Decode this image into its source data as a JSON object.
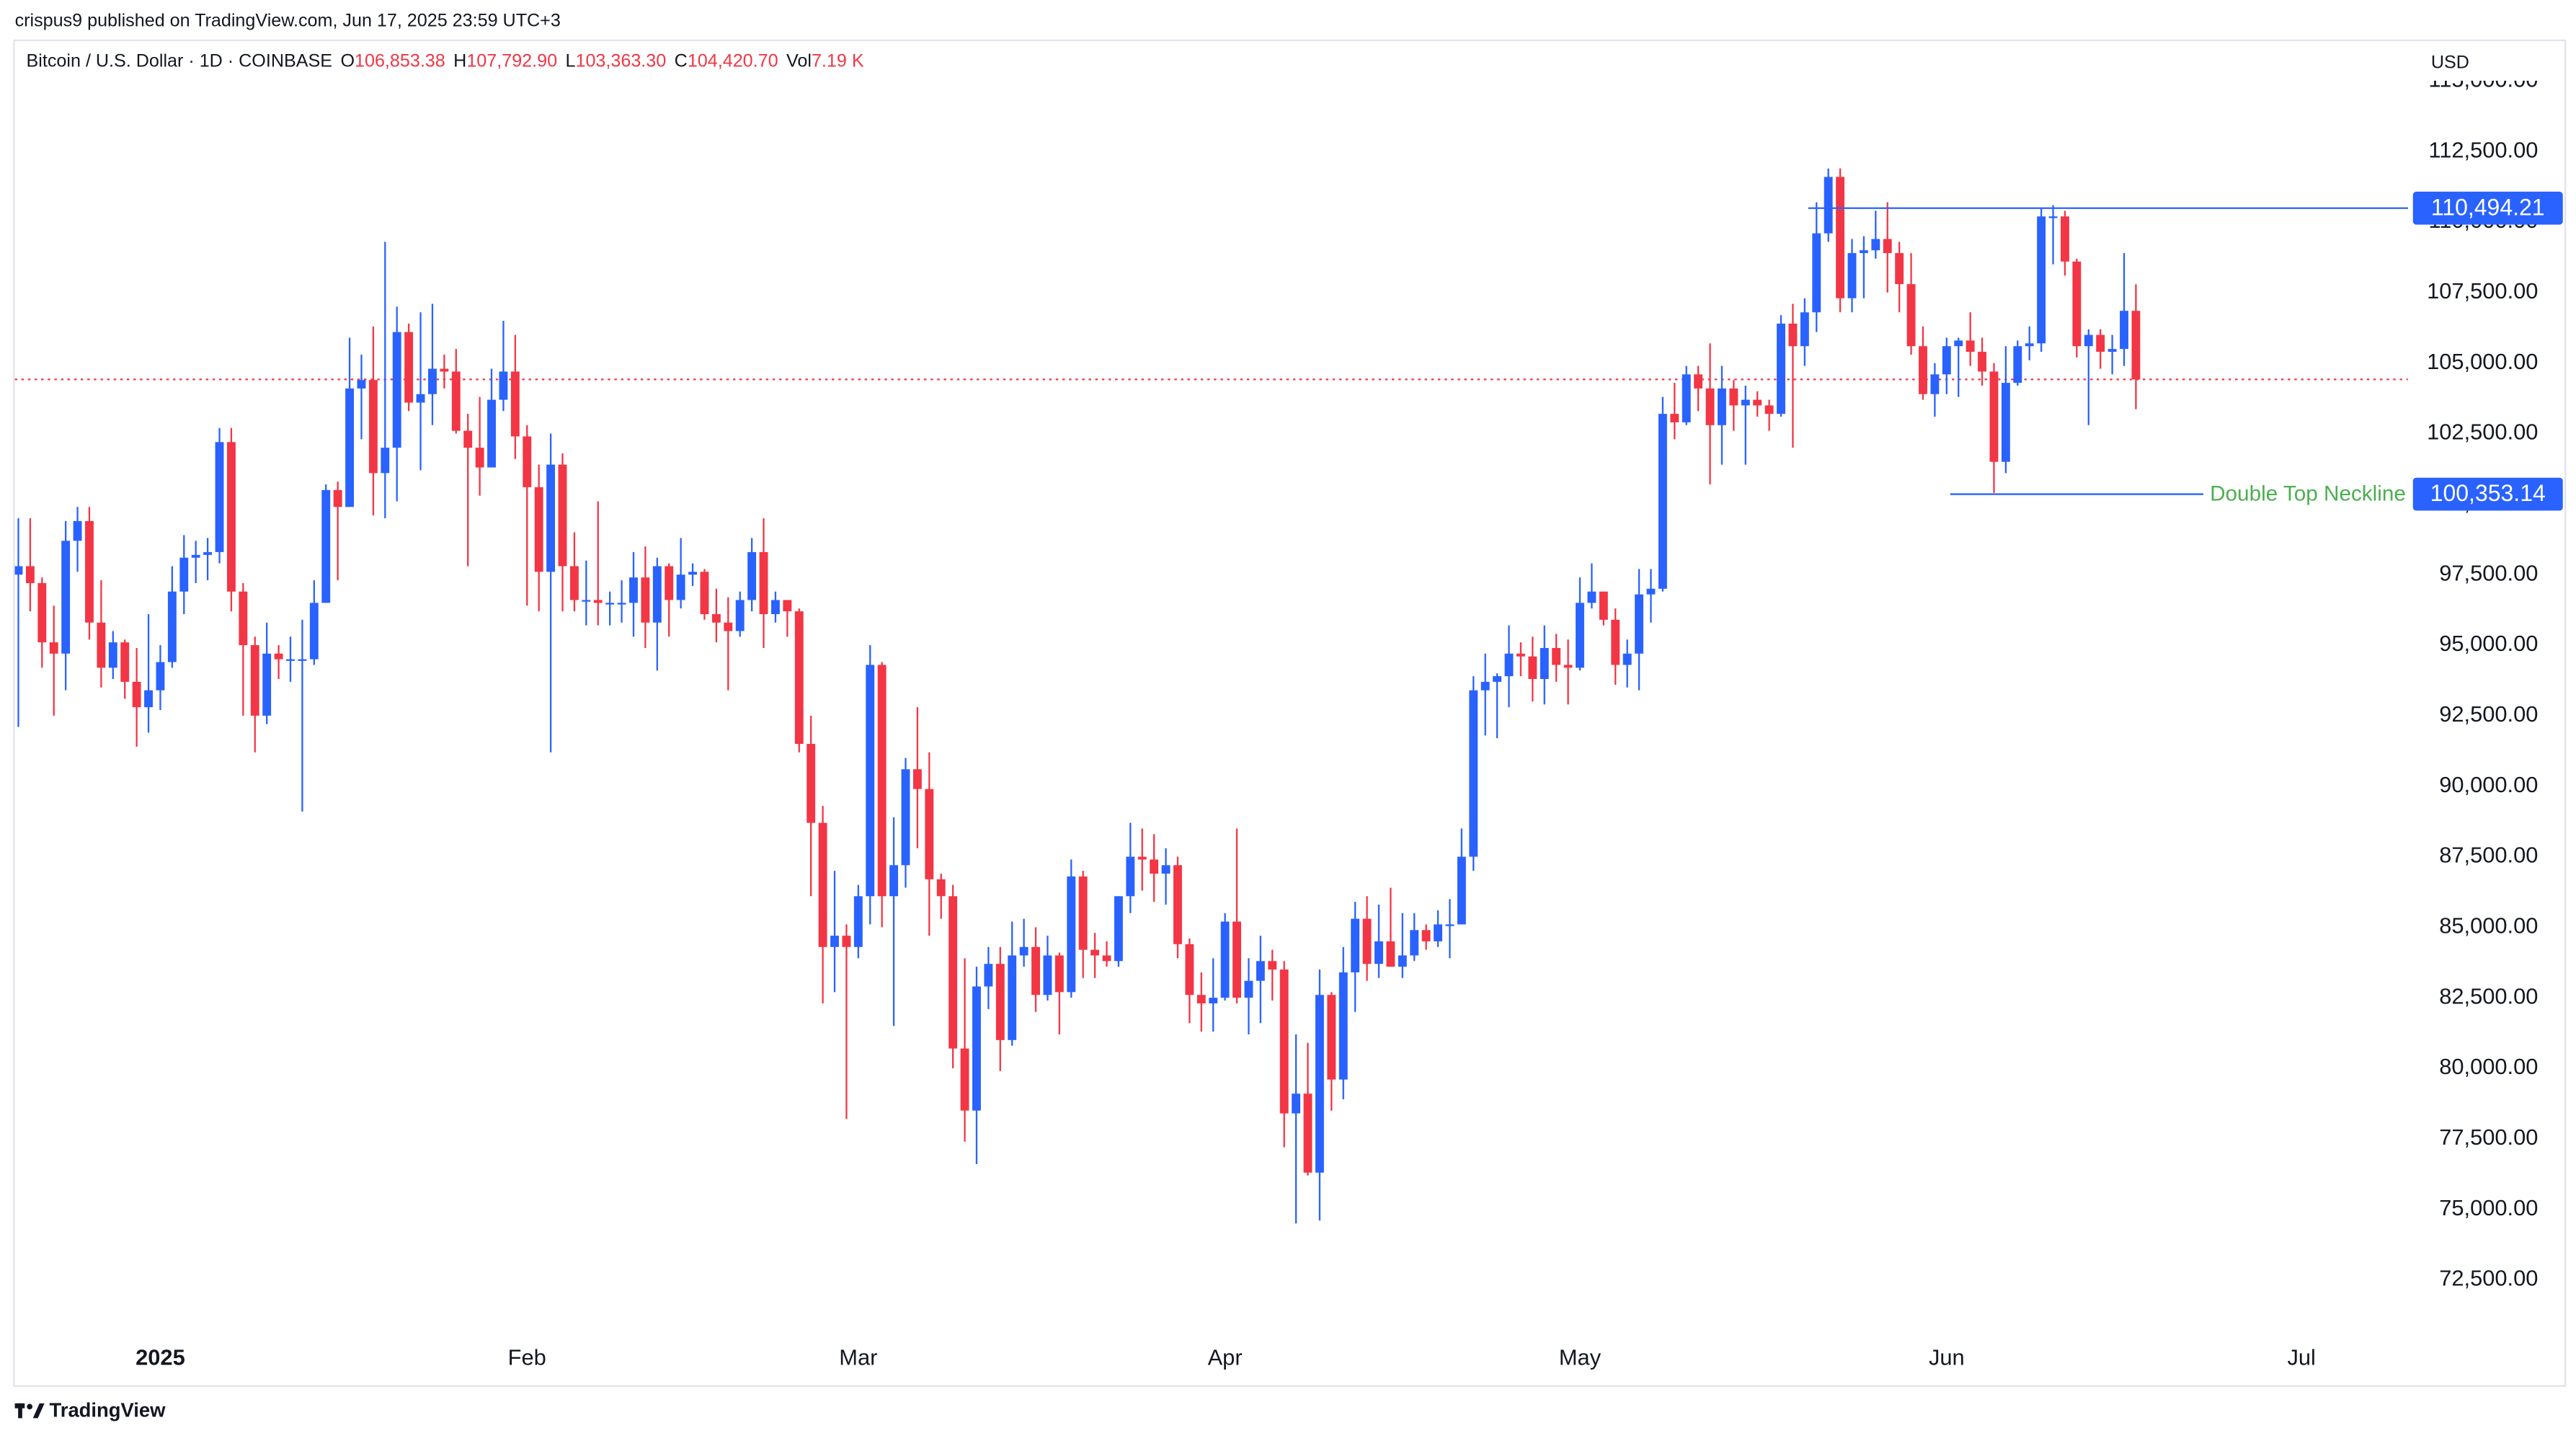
{
  "chart_data": {
    "type": "candlestick",
    "header": "crispus9 published on TradingView.com, Jun 17, 2025 23:59 UTC+3",
    "symbol": "Bitcoin / U.S. Dollar · 1D · COINBASE",
    "legend_items": [
      {
        "label": "O",
        "value": "106,853.38"
      },
      {
        "label": "H",
        "value": "107,792.90"
      },
      {
        "label": "L",
        "value": "103,363.30"
      },
      {
        "label": "C",
        "value": "104,420.70"
      },
      {
        "label": "Vol",
        "value": "7.19 K"
      }
    ],
    "currency": "USD",
    "footer": "TradingView",
    "up_color": "#2962ff",
    "down_color": "#f23645",
    "open": [
      97500,
      97800,
      97200,
      95100,
      94700,
      98700,
      99400,
      95800,
      94200,
      95100,
      93700,
      92800,
      93400,
      94400,
      96900,
      98100,
      98200,
      98300,
      102200,
      96900,
      95000,
      92500,
      94700,
      94500,
      94500,
      94500,
      96500,
      100500,
      99900,
      104100,
      104400,
      101100,
      102000,
      106100,
      103600,
      103900,
      104800,
      104700,
      102600,
      102000,
      101300,
      103700,
      104700,
      102400,
      100600,
      97600,
      101400,
      97800,
      96600,
      96600,
      96500,
      96500,
      96500,
      97400,
      95800,
      97800,
      96600,
      97500,
      97600,
      96100,
      95800,
      95500,
      96600,
      98300,
      96100,
      96600,
      96200,
      91500,
      88700,
      84300,
      84700,
      84300,
      86100,
      94300,
      86100,
      87200,
      90600,
      89900,
      86700,
      86100,
      80700,
      78500,
      82900,
      83700,
      81000,
      84000,
      84300,
      82600,
      84000,
      82700,
      86800,
      84200,
      84000,
      83800,
      86100,
      87500,
      87400,
      86900,
      87200,
      84400,
      82600,
      82300,
      82500,
      85200,
      82500,
      83100,
      83800,
      83500,
      78400,
      79100,
      76300,
      82600,
      79600,
      83400,
      85300,
      83700,
      84500,
      83600,
      84000,
      84900,
      84500,
      85100,
      85100,
      87500,
      93400,
      93700,
      93900,
      94700,
      94600,
      93800,
      94900,
      94300,
      94200,
      96500,
      96900,
      95900,
      94300,
      94700,
      96800,
      97000,
      103200,
      102900,
      104600,
      104100,
      102800,
      104100,
      103500,
      103700,
      103500,
      103200,
      106400,
      105600,
      106800,
      109600,
      111600,
      107300,
      108900,
      109000,
      109400,
      108900,
      107800,
      105600,
      103900,
      104600,
      105600,
      105800,
      105400,
      104700,
      101500,
      104300,
      105600,
      105700,
      110200,
      110200,
      108600,
      105600,
      106000,
      105400,
      105500,
      106853.38
    ],
    "high": [
      99500,
      99500,
      97400,
      96400,
      99400,
      99900,
      99900,
      97300,
      95500,
      95200,
      94900,
      96100,
      95000,
      97800,
      98900,
      98700,
      98800,
      102700,
      102700,
      97200,
      95300,
      95800,
      95000,
      95300,
      95900,
      97300,
      100700,
      100800,
      105900,
      105300,
      106300,
      109300,
      107000,
      106400,
      106800,
      107100,
      105300,
      105500,
      103200,
      103800,
      104800,
      106500,
      106000,
      102800,
      101400,
      102500,
      101800,
      99000,
      98000,
      100100,
      96900,
      97300,
      98300,
      98500,
      98100,
      97900,
      98800,
      97900,
      97700,
      97000,
      96700,
      96900,
      98800,
      99500,
      96900,
      96500,
      96300,
      92500,
      89300,
      87000,
      85100,
      86500,
      95000,
      94400,
      88900,
      91000,
      92800,
      91200,
      86900,
      86500,
      83900,
      83600,
      84300,
      84300,
      85200,
      85300,
      85000,
      84700,
      84100,
      87400,
      87000,
      84800,
      84500,
      86100,
      88700,
      88500,
      88300,
      87800,
      87500,
      84600,
      83400,
      83900,
      85500,
      88500,
      83900,
      84700,
      84200,
      83800,
      81200,
      80900,
      83500,
      82700,
      84300,
      85900,
      86100,
      85800,
      86400,
      85500,
      85500,
      85100,
      85600,
      86000,
      88500,
      93900,
      94700,
      94000,
      95700,
      95100,
      95300,
      95700,
      95400,
      95200,
      97400,
      97900,
      96900,
      96300,
      95200,
      97700,
      97700,
      103800,
      104300,
      104900,
      104900,
      105700,
      104900,
      104400,
      104200,
      104000,
      103700,
      106700,
      107100,
      107300,
      110700,
      111900,
      111900,
      109400,
      109500,
      110400,
      110700,
      109300,
      108900,
      106300,
      105000,
      105900,
      105900,
      106800,
      105900,
      105000,
      105600,
      105800,
      106300,
      110500,
      110600,
      110400,
      108700,
      106200,
      106200,
      106000,
      108900,
      107792.9
    ],
    "low": [
      92100,
      96200,
      94200,
      92500,
      93400,
      97600,
      95200,
      93500,
      93800,
      93100,
      91400,
      91900,
      92700,
      94200,
      96100,
      97200,
      97300,
      97900,
      96200,
      92500,
      91200,
      92200,
      93800,
      93700,
      89100,
      94300,
      96500,
      97300,
      99900,
      102300,
      99600,
      99500,
      100100,
      103300,
      101200,
      102800,
      104100,
      102500,
      97800,
      100300,
      101300,
      103300,
      101600,
      96400,
      96200,
      91200,
      96200,
      96200,
      95700,
      95700,
      95700,
      95800,
      95300,
      94900,
      94100,
      95300,
      96300,
      97100,
      95900,
      95100,
      93400,
      95300,
      96200,
      94900,
      95800,
      95300,
      91200,
      86100,
      82300,
      82700,
      78200,
      83900,
      85100,
      85000,
      81500,
      86400,
      87800,
      84700,
      85300,
      80000,
      77400,
      76600,
      82100,
      79900,
      80800,
      83600,
      82000,
      82400,
      81200,
      82500,
      83200,
      83200,
      83600,
      83600,
      85500,
      86300,
      85900,
      85800,
      83900,
      81600,
      81300,
      81300,
      82400,
      82300,
      81200,
      81600,
      82400,
      77200,
      74500,
      76200,
      74600,
      78500,
      78900,
      82000,
      83100,
      83200,
      83600,
      83200,
      83800,
      84200,
      84300,
      83900,
      85100,
      87000,
      91800,
      91700,
      92800,
      93900,
      93000,
      92900,
      93700,
      92900,
      94100,
      96300,
      95700,
      93600,
      93500,
      93400,
      95800,
      96900,
      102300,
      102800,
      103300,
      100700,
      101400,
      102600,
      101400,
      103100,
      102600,
      103100,
      102000,
      104900,
      106100,
      109300,
      106800,
      106800,
      107300,
      108700,
      107500,
      106800,
      105300,
      103700,
      103100,
      103900,
      103800,
      104900,
      104200,
      100400,
      101100,
      104200,
      105100,
      105400,
      108500,
      108100,
      105200,
      102800,
      104800,
      104600,
      104900,
      103363.3
    ],
    "close": [
      97800,
      97200,
      95100,
      94700,
      98700,
      99400,
      95800,
      94200,
      95100,
      93700,
      92800,
      93400,
      94400,
      96900,
      98100,
      98200,
      98300,
      102200,
      96900,
      95000,
      92500,
      94700,
      94500,
      94500,
      94500,
      96500,
      100500,
      99900,
      104100,
      104400,
      101100,
      102000,
      106100,
      103600,
      103900,
      104800,
      104700,
      102600,
      102000,
      101300,
      103700,
      104700,
      102400,
      100600,
      97600,
      101400,
      97800,
      96600,
      96600,
      96500,
      96500,
      96500,
      97400,
      95800,
      97800,
      96600,
      97500,
      97600,
      96100,
      95800,
      95500,
      96600,
      98300,
      96100,
      96600,
      96200,
      91500,
      88700,
      84300,
      84700,
      84300,
      86100,
      94300,
      86100,
      87200,
      90600,
      89900,
      86700,
      86100,
      80700,
      78500,
      82900,
      83700,
      81000,
      84000,
      84300,
      82600,
      84000,
      82700,
      86800,
      84200,
      84000,
      83800,
      86100,
      87500,
      87400,
      86900,
      87200,
      84400,
      82600,
      82300,
      82500,
      85200,
      82500,
      83100,
      83800,
      83500,
      78400,
      79100,
      76300,
      82600,
      79600,
      83400,
      85300,
      83700,
      84500,
      83600,
      84000,
      84900,
      84500,
      85100,
      85100,
      87500,
      93400,
      93700,
      93900,
      94700,
      94600,
      93800,
      94900,
      94300,
      94200,
      96500,
      96900,
      95900,
      94300,
      94700,
      96800,
      97000,
      103200,
      102900,
      104600,
      104100,
      102800,
      104100,
      103500,
      103700,
      103500,
      103200,
      106400,
      105600,
      106800,
      109600,
      111600,
      107300,
      108900,
      109000,
      109400,
      108900,
      107800,
      105600,
      103900,
      104600,
      105600,
      105800,
      105400,
      104700,
      101500,
      104300,
      105600,
      105700,
      110200,
      110200,
      108600,
      105600,
      106000,
      105400,
      105500,
      106853.38,
      104420.7
    ],
    "xlim": [
      -0.3,
      202
    ],
    "xticks": [
      {
        "value": 12,
        "label": "2025"
      },
      {
        "value": 43,
        "label": "Feb"
      },
      {
        "value": 71,
        "label": "Mar"
      },
      {
        "value": 102,
        "label": "Apr"
      },
      {
        "value": 132,
        "label": "May"
      },
      {
        "value": 163,
        "label": "Jun"
      },
      {
        "value": 193,
        "label": "Jul"
      }
    ],
    "ylim": [
      70456,
      116471
    ],
    "yticks": [
      {
        "value": 72500,
        "label": "72,500.00"
      },
      {
        "value": 75000,
        "label": "75,000.00"
      },
      {
        "value": 77500,
        "label": "77,500.00"
      },
      {
        "value": 80000,
        "label": "80,000.00"
      },
      {
        "value": 82500,
        "label": "82,500.00"
      },
      {
        "value": 85000,
        "label": "85,000.00"
      },
      {
        "value": 87500,
        "label": "87,500.00"
      },
      {
        "value": 90000,
        "label": "90,000.00"
      },
      {
        "value": 92500,
        "label": "92,500.00"
      },
      {
        "value": 95000,
        "label": "95,000.00"
      },
      {
        "value": 97500,
        "label": "97,500.00"
      },
      {
        "value": 100000,
        "label": "100,000.00"
      },
      {
        "value": 102500,
        "label": "102,500.00"
      },
      {
        "value": 105000,
        "label": "105,000.00"
      },
      {
        "value": 107500,
        "label": "107,500.00"
      },
      {
        "value": 110000,
        "label": "110,000.00"
      },
      {
        "value": 112500,
        "label": "112,500.00"
      },
      {
        "value": 115000,
        "label": "115,000.00"
      }
    ],
    "price_line": {
      "value": 104420.7,
      "color": "#f23645"
    },
    "horizontal_lines": [
      {
        "value": 110494.21,
        "label": "110,494.21",
        "color": "#2962ff",
        "from": 151.3
      },
      {
        "value": 100353.14,
        "label": "100,353.14",
        "color": "#2962ff",
        "from": 163.3,
        "to": 184.7,
        "text": "Double Top Neckline",
        "text_color": "#4caf50"
      }
    ]
  }
}
